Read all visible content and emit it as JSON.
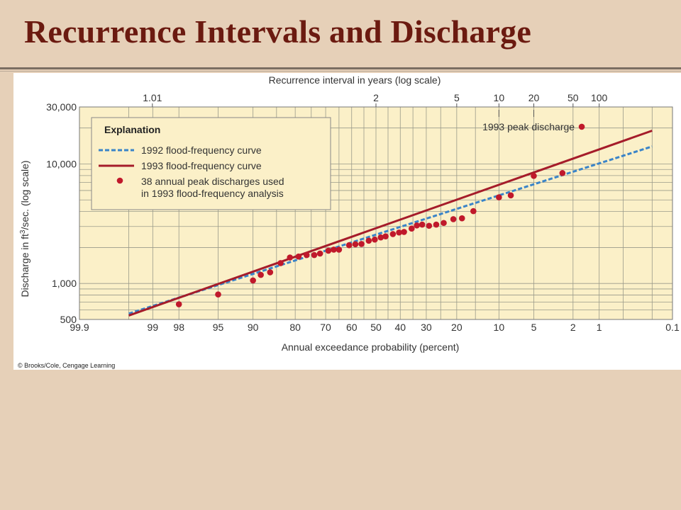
{
  "slide": {
    "title": "Recurrence Intervals and Discharge"
  },
  "credit": "© Brooks/Cole, Cengage Learning",
  "colors": {
    "background": "#e6d0b8",
    "title": "#6b1a10",
    "plot_area": "#fbf0c8",
    "curve_1992": "#3a84c8",
    "curve_1993": "#a51c2a",
    "points": "#c0192b"
  },
  "chart_data": {
    "type": "scatter",
    "title": "",
    "xlabel": "Annual exceedance probability (percent)",
    "x2label": "Recurrence interval in years (log scale)",
    "ylabel_pre": "Discharge in ft",
    "ylabel_sup": "3",
    "ylabel_post": "/sec. (log scale)",
    "y_scale": "log",
    "ylim": [
      500,
      30000
    ],
    "x_scale": "probability",
    "xlim": [
      99.9,
      0.1
    ],
    "grid": true,
    "x_ticks": [
      {
        "value": 99.9,
        "label": "99.9"
      },
      {
        "value": 99,
        "label": "99"
      },
      {
        "value": 98,
        "label": "98"
      },
      {
        "value": 95,
        "label": "95"
      },
      {
        "value": 90,
        "label": "90"
      },
      {
        "value": 80,
        "label": "80"
      },
      {
        "value": 70,
        "label": "70"
      },
      {
        "value": 60,
        "label": "60"
      },
      {
        "value": 50,
        "label": "50"
      },
      {
        "value": 40,
        "label": "40"
      },
      {
        "value": 30,
        "label": "30"
      },
      {
        "value": 20,
        "label": "20"
      },
      {
        "value": 10,
        "label": "10"
      },
      {
        "value": 5,
        "label": "5"
      },
      {
        "value": 2,
        "label": "2"
      },
      {
        "value": 1,
        "label": "1"
      },
      {
        "value": 0.1,
        "label": "0.1"
      }
    ],
    "x_grid": [
      99.9,
      99.5,
      99,
      98,
      95,
      90,
      85,
      80,
      75,
      70,
      65,
      60,
      55,
      50,
      45,
      40,
      35,
      30,
      25,
      20,
      15,
      10,
      5,
      2,
      1,
      0.5,
      0.2,
      0.1
    ],
    "top_ticks": [
      {
        "years": 1.01,
        "label": "1.01"
      },
      {
        "years": 2,
        "label": "2"
      },
      {
        "years": 5,
        "label": "5"
      },
      {
        "years": 10,
        "label": "10"
      },
      {
        "years": 20,
        "label": "20"
      },
      {
        "years": 50,
        "label": "50"
      },
      {
        "years": 100,
        "label": "100"
      }
    ],
    "y_ticks": [
      {
        "value": 500,
        "label": "500"
      },
      {
        "value": 1000,
        "label": "1,000"
      },
      {
        "value": 10000,
        "label": "10,000"
      },
      {
        "value": 30000,
        "label": "30,000"
      }
    ],
    "y_grid": [
      500,
      600,
      700,
      800,
      900,
      1000,
      2000,
      3000,
      4000,
      5000,
      6000,
      7000,
      8000,
      9000,
      10000,
      20000,
      30000
    ],
    "legend": {
      "placement": "top-left",
      "title": "Explanation",
      "items": [
        {
          "kind": "dashed-line",
          "label": "1992 flood-frequency curve"
        },
        {
          "kind": "solid-line",
          "label": "1993 flood-frequency curve"
        },
        {
          "kind": "dot",
          "label": "38 annual peak discharges used",
          "label2": "in 1993 flood-frequency analysis"
        }
      ]
    },
    "series": [
      {
        "name": "1992 flood-frequency curve",
        "kind": "dashed-line",
        "points": [
          [
            99.5,
            560
          ],
          [
            0.2,
            14000
          ]
        ]
      },
      {
        "name": "1993 flood-frequency curve",
        "kind": "solid-line",
        "points": [
          [
            99.5,
            540
          ],
          [
            0.2,
            19000
          ]
        ]
      },
      {
        "name": "38 annual peak discharges used in 1993 flood-frequency analysis",
        "kind": "dot",
        "points": [
          [
            98,
            670
          ],
          [
            95,
            810
          ],
          [
            90,
            1060
          ],
          [
            88.5,
            1180
          ],
          [
            86.5,
            1240
          ],
          [
            84,
            1480
          ],
          [
            81.5,
            1650
          ],
          [
            79,
            1680
          ],
          [
            76.5,
            1730
          ],
          [
            74,
            1730
          ],
          [
            72,
            1780
          ],
          [
            69,
            1880
          ],
          [
            67,
            1920
          ],
          [
            65,
            1920
          ],
          [
            61,
            2090
          ],
          [
            58.5,
            2130
          ],
          [
            56,
            2140
          ],
          [
            53,
            2280
          ],
          [
            50.5,
            2330
          ],
          [
            48,
            2430
          ],
          [
            46,
            2480
          ],
          [
            43,
            2590
          ],
          [
            40.5,
            2670
          ],
          [
            38.5,
            2700
          ],
          [
            35.5,
            2880
          ],
          [
            33.5,
            3060
          ],
          [
            31.5,
            3110
          ],
          [
            29,
            3040
          ],
          [
            26.5,
            3110
          ],
          [
            24,
            3210
          ],
          [
            21,
            3450
          ],
          [
            18.5,
            3510
          ],
          [
            15.5,
            4030
          ],
          [
            10,
            5260
          ],
          [
            8,
            5460
          ],
          [
            5,
            7950
          ],
          [
            2.6,
            8390
          ]
        ]
      },
      {
        "name": "1993 peak discharge",
        "kind": "dot",
        "points": [
          [
            1.6,
            20500
          ]
        ]
      }
    ],
    "annotations": [
      {
        "text": "1993 peak discharge",
        "x": 1.6,
        "y": 20500
      }
    ]
  }
}
